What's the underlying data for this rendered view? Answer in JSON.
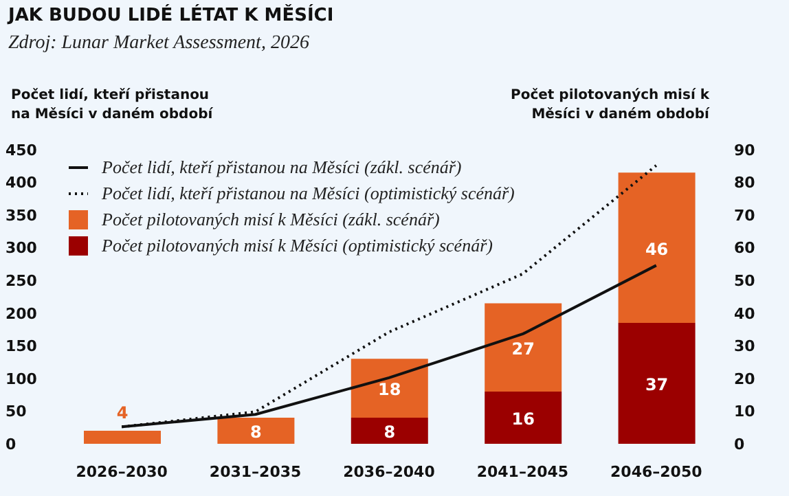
{
  "chart_data": {
    "type": "bar",
    "title": "JAK BUDOU LIDÉ LÉTAT K MĚSÍCI",
    "annotations": [
      "Zdroj: Lunar Market Assessment, 2026"
    ],
    "ylabel": "Počet lidí, kteří přistanou na Měsíci v daném období",
    "y2label": "Počet pilotovaných misí k Měsíci v daném období",
    "categories": [
      "2026–2030",
      "2031–2035",
      "2036–2040",
      "2041–2045",
      "2046–2050"
    ],
    "series": [
      {
        "name": "Počet lidí, kteří přistanou na Měsíci (zákl. scénář)",
        "type": "line",
        "color": "#111111",
        "line_style": "solid",
        "values": [
          26,
          45,
          101,
          168,
          273
        ]
      },
      {
        "name": "Počet lidí, kteří přistanou na Měsíci (optimistický scénář)",
        "type": "line",
        "color": "#111111",
        "line_style": "dotted",
        "values": [
          26,
          49,
          171,
          260,
          426
        ]
      },
      {
        "name": "Počet pilotovaných misí k Měsíci (optimistický scénář)",
        "axis": "y2",
        "color": "#9b0000",
        "values": [
          null,
          null,
          8,
          16,
          37
        ],
        "value_labels": [
          null,
          null,
          "8",
          "16",
          "37"
        ]
      },
      {
        "name": "Počet pilotovaných misí k Měsíci (zákl. scénář)",
        "axis": "y2",
        "color": "#e56325",
        "values": [
          4,
          8,
          18,
          27,
          46
        ],
        "value_labels": [
          "4",
          "8",
          "18",
          "27",
          "46"
        ]
      }
    ],
    "stacked": true,
    "marker": "none",
    "grid": false,
    "legend": "top left",
    "ylim": [
      0,
      450
    ],
    "yticks": [
      0,
      50,
      100,
      150,
      200,
      250,
      300,
      350,
      400,
      450
    ],
    "y2lim": [
      0,
      90
    ],
    "y2ticks": [
      0,
      10,
      20,
      30,
      40,
      50,
      60,
      70,
      80,
      90
    ]
  }
}
